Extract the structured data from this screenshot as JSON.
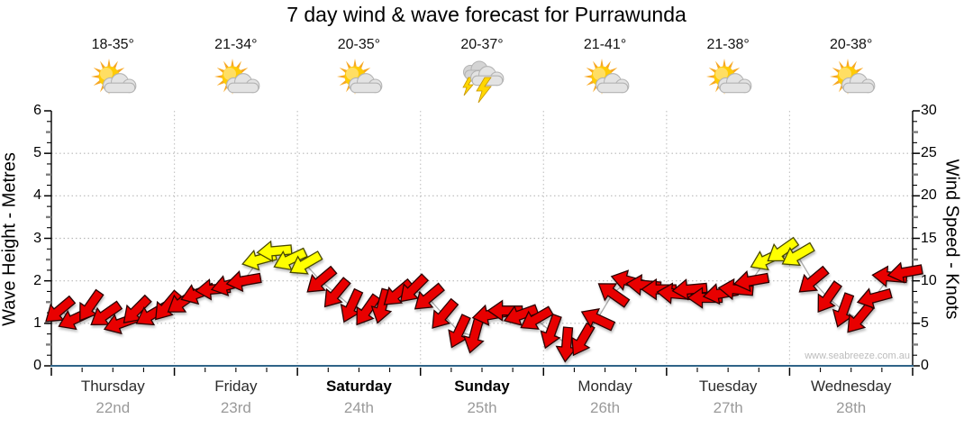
{
  "title": "7 day wind & wave forecast for Purrawunda",
  "watermark": "www.seabreeze.com.au",
  "colors": {
    "arrow_red": "#e80000",
    "arrow_red_stroke": "#2b0000",
    "arrow_yellow": "#ffff00",
    "arrow_yellow_stroke": "#4a4a00",
    "x_axis_line": "#2f6488",
    "grid_line": "#b9b9b9",
    "day_grid_line": "#c6c6c6",
    "wind_trace_line": "#ababab",
    "date_text": "#9a9a9a",
    "sun": "#ffcb05",
    "sun_rays": "#f7a823",
    "cloud": "#e3e3e3",
    "lightning": "#ffd700"
  },
  "chart_data": {
    "type": "wind-arrow-timeseries",
    "title": "7 day wind & wave forecast for Purrawunda",
    "left_axis": {
      "label": "Wave Height - Metres",
      "min": 0,
      "max": 6,
      "major_step": 1,
      "minor_step": 0.25
    },
    "right_axis": {
      "label": "Wind Speed - Knots",
      "min": 0,
      "max": 30,
      "major_step": 5,
      "minor_step": 1.25
    },
    "x_axis": {
      "days": 7,
      "minor_ticks_per_day": 4,
      "grid": "dotted-day-boundaries"
    },
    "days": [
      {
        "name": "Thursday",
        "date": "22nd",
        "temps": "18-35°",
        "icon": "partly-cloudy",
        "weekend": false
      },
      {
        "name": "Friday",
        "date": "23rd",
        "temps": "21-34°",
        "icon": "partly-cloudy",
        "weekend": false
      },
      {
        "name": "Saturday",
        "date": "24th",
        "temps": "20-35°",
        "icon": "partly-cloudy",
        "weekend": true
      },
      {
        "name": "Sunday",
        "date": "25th",
        "temps": "20-37°",
        "icon": "thunderstorm",
        "weekend": true
      },
      {
        "name": "Monday",
        "date": "26th",
        "temps": "21-41°",
        "icon": "partly-cloudy",
        "weekend": false
      },
      {
        "name": "Tuesday",
        "date": "27th",
        "temps": "21-38°",
        "icon": "partly-cloudy",
        "weekend": false
      },
      {
        "name": "Wednesday",
        "date": "28th",
        "temps": "20-38°",
        "icon": "partly-cloudy",
        "weekend": false
      }
    ],
    "arrows_3hourly_knots_dir": [
      {
        "kn": 6.5,
        "dir": 140,
        "c": "red"
      },
      {
        "kn": 5.5,
        "dir": 155,
        "c": "red"
      },
      {
        "kn": 7.0,
        "dir": 125,
        "c": "red"
      },
      {
        "kn": 6.0,
        "dir": 145,
        "c": "red"
      },
      {
        "kn": 5.0,
        "dir": 160,
        "c": "red"
      },
      {
        "kn": 6.5,
        "dir": 135,
        "c": "red"
      },
      {
        "kn": 6.0,
        "dir": 150,
        "c": "red"
      },
      {
        "kn": 7.0,
        "dir": 130,
        "c": "red"
      },
      {
        "kn": 7.5,
        "dir": 145,
        "c": "red"
      },
      {
        "kn": 8.5,
        "dir": 160,
        "c": "red"
      },
      {
        "kn": 9.0,
        "dir": 175,
        "c": "red"
      },
      {
        "kn": 9.5,
        "dir": 165,
        "c": "red"
      },
      {
        "kn": 10.0,
        "dir": 170,
        "c": "red"
      },
      {
        "kn": 12.5,
        "dir": 165,
        "c": "yellow"
      },
      {
        "kn": 13.5,
        "dir": 175,
        "c": "yellow"
      },
      {
        "kn": 12.5,
        "dir": 155,
        "c": "yellow"
      },
      {
        "kn": 12.0,
        "dir": 150,
        "c": "yellow"
      },
      {
        "kn": 10.0,
        "dir": 140,
        "c": "red"
      },
      {
        "kn": 8.5,
        "dir": 130,
        "c": "red"
      },
      {
        "kn": 7.0,
        "dir": 115,
        "c": "red"
      },
      {
        "kn": 6.5,
        "dir": 125,
        "c": "red"
      },
      {
        "kn": 7.0,
        "dir": 105,
        "c": "red"
      },
      {
        "kn": 8.5,
        "dir": 140,
        "c": "red"
      },
      {
        "kn": 9.0,
        "dir": 135,
        "c": "red"
      },
      {
        "kn": 8.0,
        "dir": 140,
        "c": "red"
      },
      {
        "kn": 6.0,
        "dir": 130,
        "c": "red"
      },
      {
        "kn": 4.0,
        "dir": 115,
        "c": "red"
      },
      {
        "kn": 3.5,
        "dir": 105,
        "c": "red"
      },
      {
        "kn": 6.0,
        "dir": 170,
        "c": "red"
      },
      {
        "kn": 6.5,
        "dir": 180,
        "c": "red"
      },
      {
        "kn": 6.0,
        "dir": 160,
        "c": "red"
      },
      {
        "kn": 5.5,
        "dir": 150,
        "c": "red"
      },
      {
        "kn": 4.0,
        "dir": 110,
        "c": "red"
      },
      {
        "kn": 2.5,
        "dir": 95,
        "c": "red"
      },
      {
        "kn": 3.0,
        "dir": 120,
        "c": "red"
      },
      {
        "kn": 5.5,
        "dir": 205,
        "c": "red"
      },
      {
        "kn": 8.5,
        "dir": 215,
        "c": "red"
      },
      {
        "kn": 10.0,
        "dir": 195,
        "c": "red"
      },
      {
        "kn": 9.5,
        "dir": 185,
        "c": "red"
      },
      {
        "kn": 9.0,
        "dir": 180,
        "c": "red"
      },
      {
        "kn": 8.5,
        "dir": 185,
        "c": "red"
      },
      {
        "kn": 9.0,
        "dir": 175,
        "c": "red"
      },
      {
        "kn": 8.0,
        "dir": 180,
        "c": "red"
      },
      {
        "kn": 8.5,
        "dir": 170,
        "c": "red"
      },
      {
        "kn": 9.0,
        "dir": 185,
        "c": "red"
      },
      {
        "kn": 10.0,
        "dir": 170,
        "c": "red"
      },
      {
        "kn": 12.5,
        "dir": 155,
        "c": "yellow"
      },
      {
        "kn": 13.5,
        "dir": 145,
        "c": "yellow"
      },
      {
        "kn": 13.0,
        "dir": 150,
        "c": "yellow"
      },
      {
        "kn": 10.0,
        "dir": 140,
        "c": "red"
      },
      {
        "kn": 8.0,
        "dir": 125,
        "c": "red"
      },
      {
        "kn": 6.5,
        "dir": 110,
        "c": "red"
      },
      {
        "kn": 5.5,
        "dir": 130,
        "c": "red"
      },
      {
        "kn": 8.0,
        "dir": 165,
        "c": "red"
      },
      {
        "kn": 10.5,
        "dir": 185,
        "c": "red"
      },
      {
        "kn": 11.0,
        "dir": 170,
        "c": "red"
      }
    ]
  }
}
